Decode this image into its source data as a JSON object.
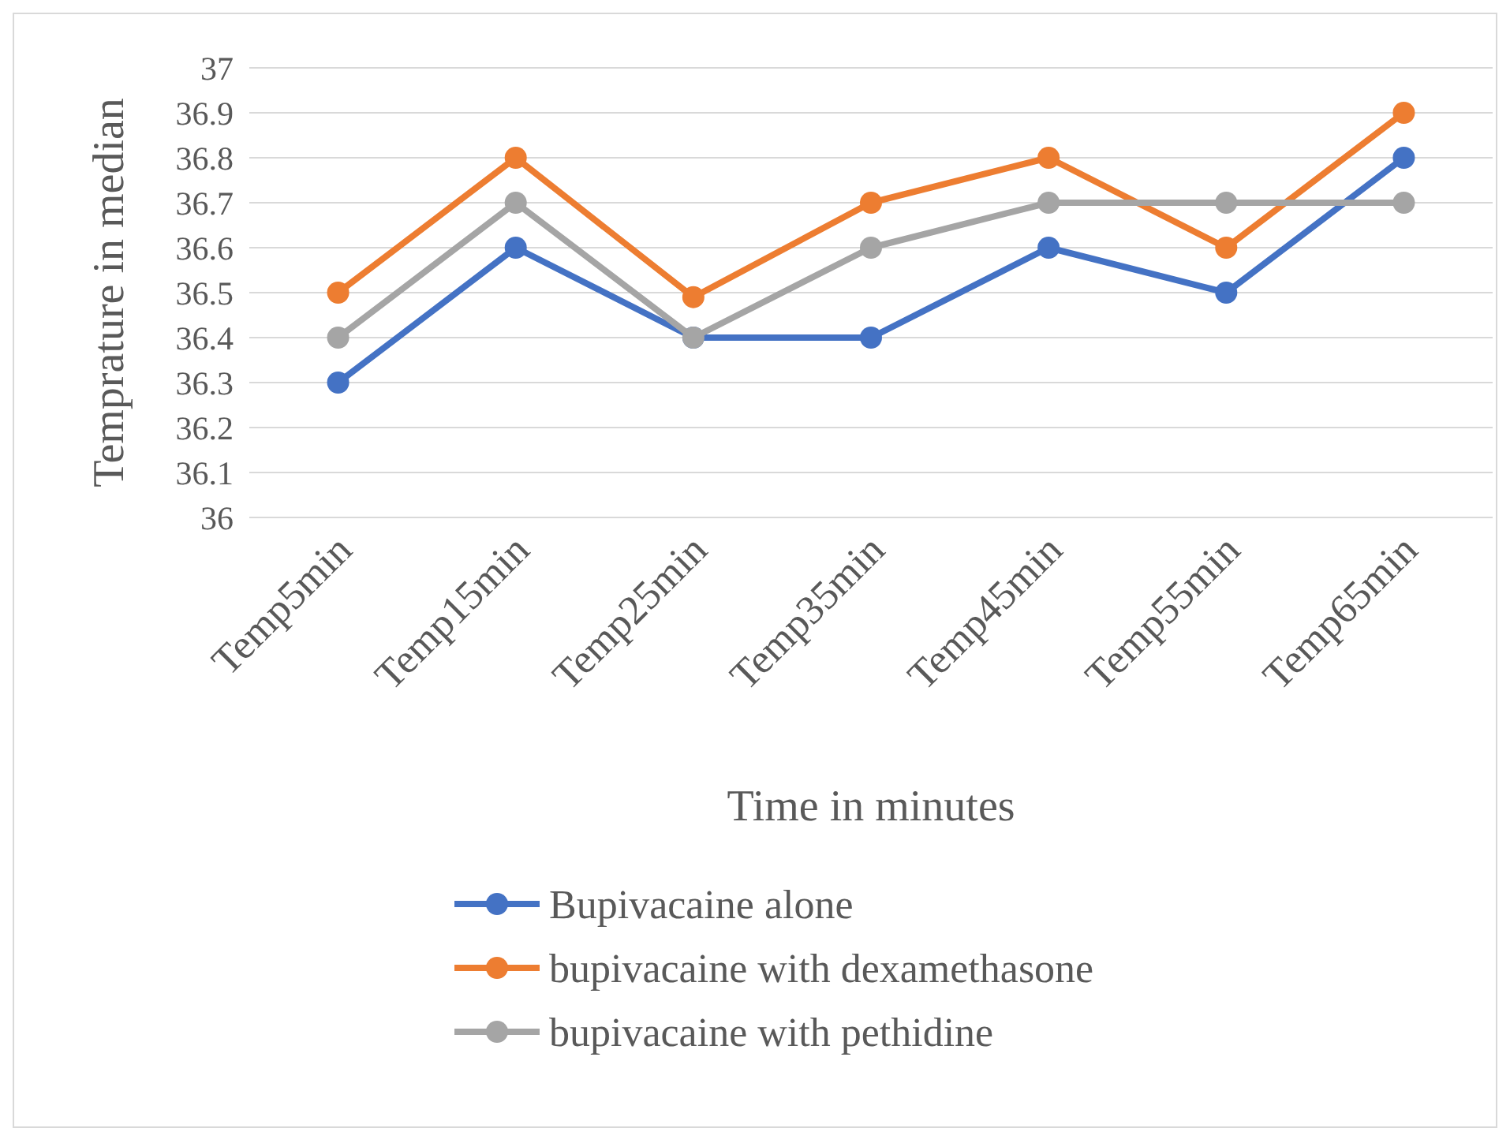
{
  "chart_data": {
    "type": "line",
    "xlabel": "Time in minutes",
    "ylabel": "Temprature in median",
    "categories": [
      "Temp5min",
      "Temp15min",
      "Temp25min",
      "Temp35min",
      "Temp45min",
      "Temp55min",
      "Temp65min"
    ],
    "series": [
      {
        "name": "Bupivacaine alone",
        "color": "#4472c4",
        "values": [
          36.3,
          36.6,
          36.4,
          36.4,
          36.6,
          36.5,
          36.8
        ]
      },
      {
        "name": "bupivacaine with dexamethasone",
        "color": "#ed7d31",
        "values": [
          36.5,
          36.8,
          36.49,
          36.7,
          36.8,
          36.6,
          36.9
        ]
      },
      {
        "name": "bupivacaine with pethidine",
        "color": "#a5a5a5",
        "values": [
          36.4,
          36.7,
          36.4,
          36.6,
          36.7,
          36.7,
          36.7
        ]
      }
    ],
    "ylim": [
      36,
      37
    ],
    "yticks": [
      36,
      36.1,
      36.2,
      36.3,
      36.4,
      36.5,
      36.6,
      36.7,
      36.8,
      36.9,
      37
    ],
    "grid": "y",
    "legend": "bottom",
    "marker": "circle",
    "line_style": "solid"
  }
}
